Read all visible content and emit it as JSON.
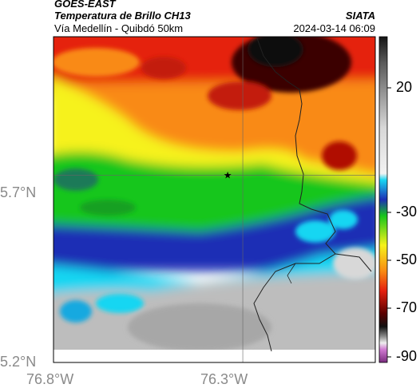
{
  "header": {
    "satellite": "GOES-EAST",
    "product": "Temperatura de Brillo CH13",
    "route": "Vía Medellín - Quibdó 50km",
    "agency": "SIATA",
    "datetime": "2024-03-14 06:09"
  },
  "map": {
    "lon_range": [
      -76.8,
      -75.95
    ],
    "lat_range": [
      5.2,
      6.07
    ],
    "x_ticks": [
      "76.8°W",
      "76.3°W"
    ],
    "y_ticks": [
      "5.7°N",
      "5.2°N"
    ],
    "marker": {
      "icon": "star-icon",
      "lon": -76.34,
      "lat": 5.7
    },
    "graticule": {
      "lon": -76.3,
      "lat": 5.7
    }
  },
  "colorbar": {
    "ticks": [
      "20",
      "-30",
      "-50",
      "-70",
      "-90"
    ],
    "range": [
      -95,
      35
    ],
    "colors": {
      "dark": "#151515",
      "red": "#e5200f",
      "orange": "#f98a12",
      "yellow": "#f6f21a",
      "green": "#17c61b",
      "teal": "#1f7a58",
      "blue": "#1c2fb5",
      "cyan": "#18d6f2",
      "gray": "#bdbdbd",
      "magenta": "#c43fc6"
    }
  }
}
